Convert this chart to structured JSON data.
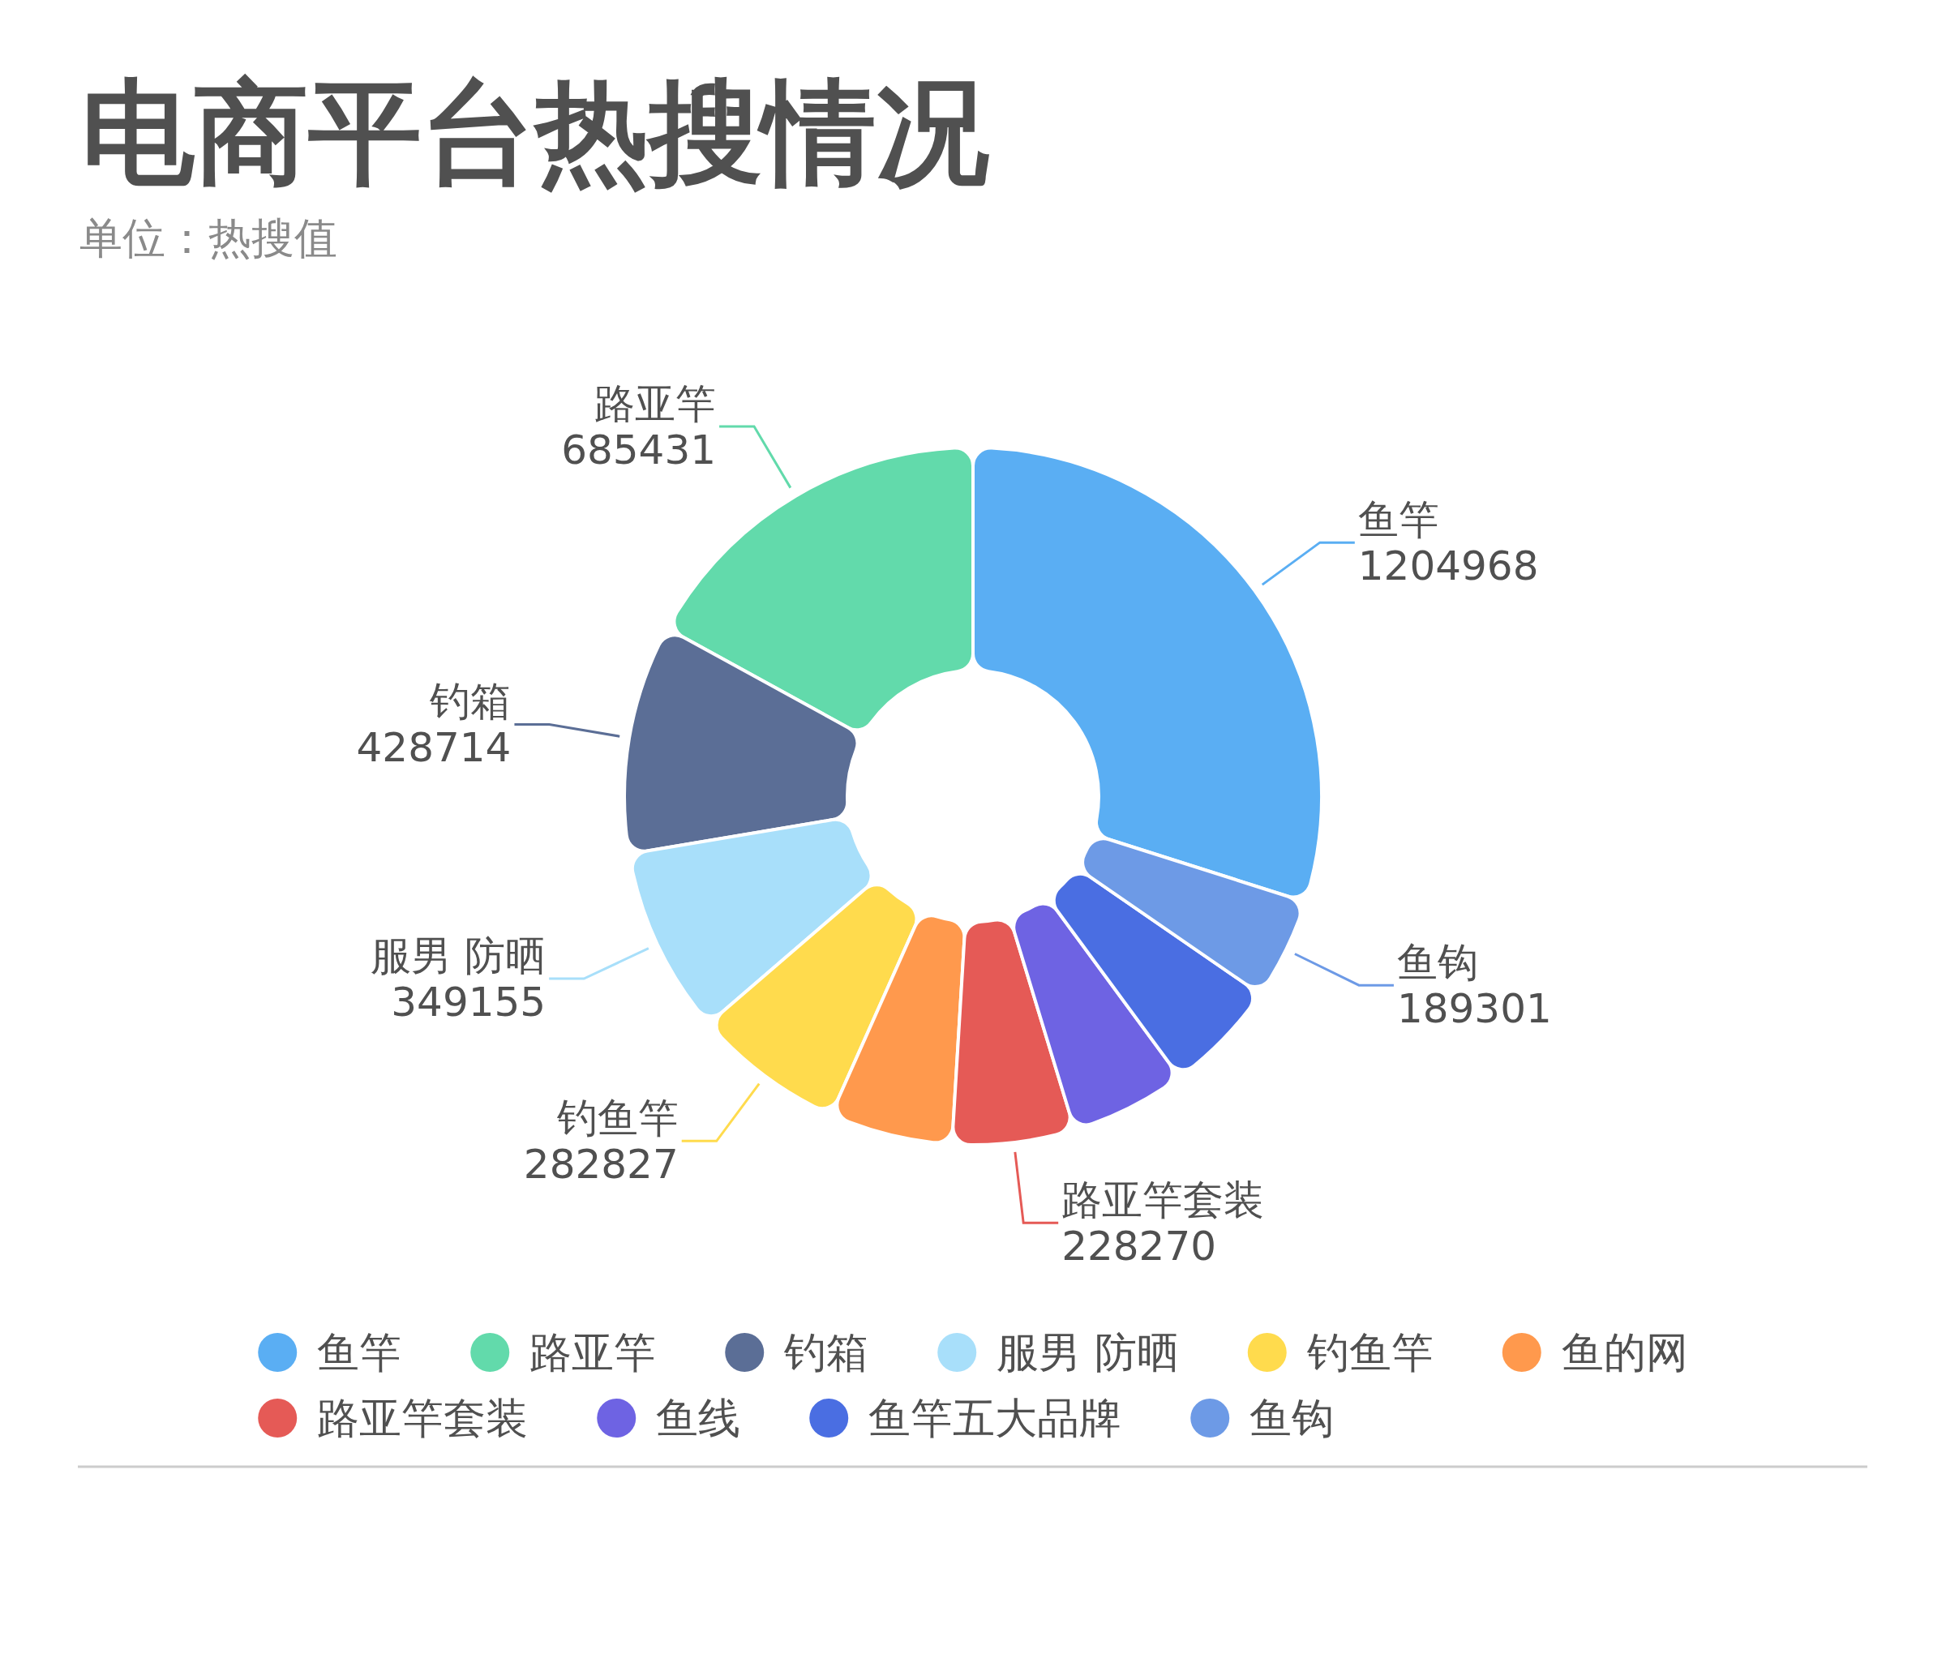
{
  "chart_data": {
    "type": "donut",
    "title": "电商平台热搜情况",
    "subtitle": "单位：热搜值",
    "categories": [
      "鱼竿",
      "路亚竿",
      "钓箱",
      "服男 防晒",
      "钓鱼竿",
      "鱼的网",
      "路亚竿套装",
      "鱼线",
      "鱼竿五大品牌",
      "鱼钩"
    ],
    "values": [
      1204968,
      685431,
      428714,
      349155,
      282827,
      230000,
      228270,
      217000,
      214000,
      189301
    ],
    "colors": [
      "#5aaef3",
      "#62daab",
      "#5b6e96",
      "#a8dffa",
      "#ffdb4d",
      "#ff994d",
      "#e55a56",
      "#6e63e3",
      "#4a6ee2",
      "#6d9ae6"
    ],
    "value_labels": [
      "1204968",
      "685431",
      "428714",
      "349155",
      "282827",
      null,
      "228270",
      null,
      null,
      "189301"
    ],
    "legend": "bottom"
  }
}
